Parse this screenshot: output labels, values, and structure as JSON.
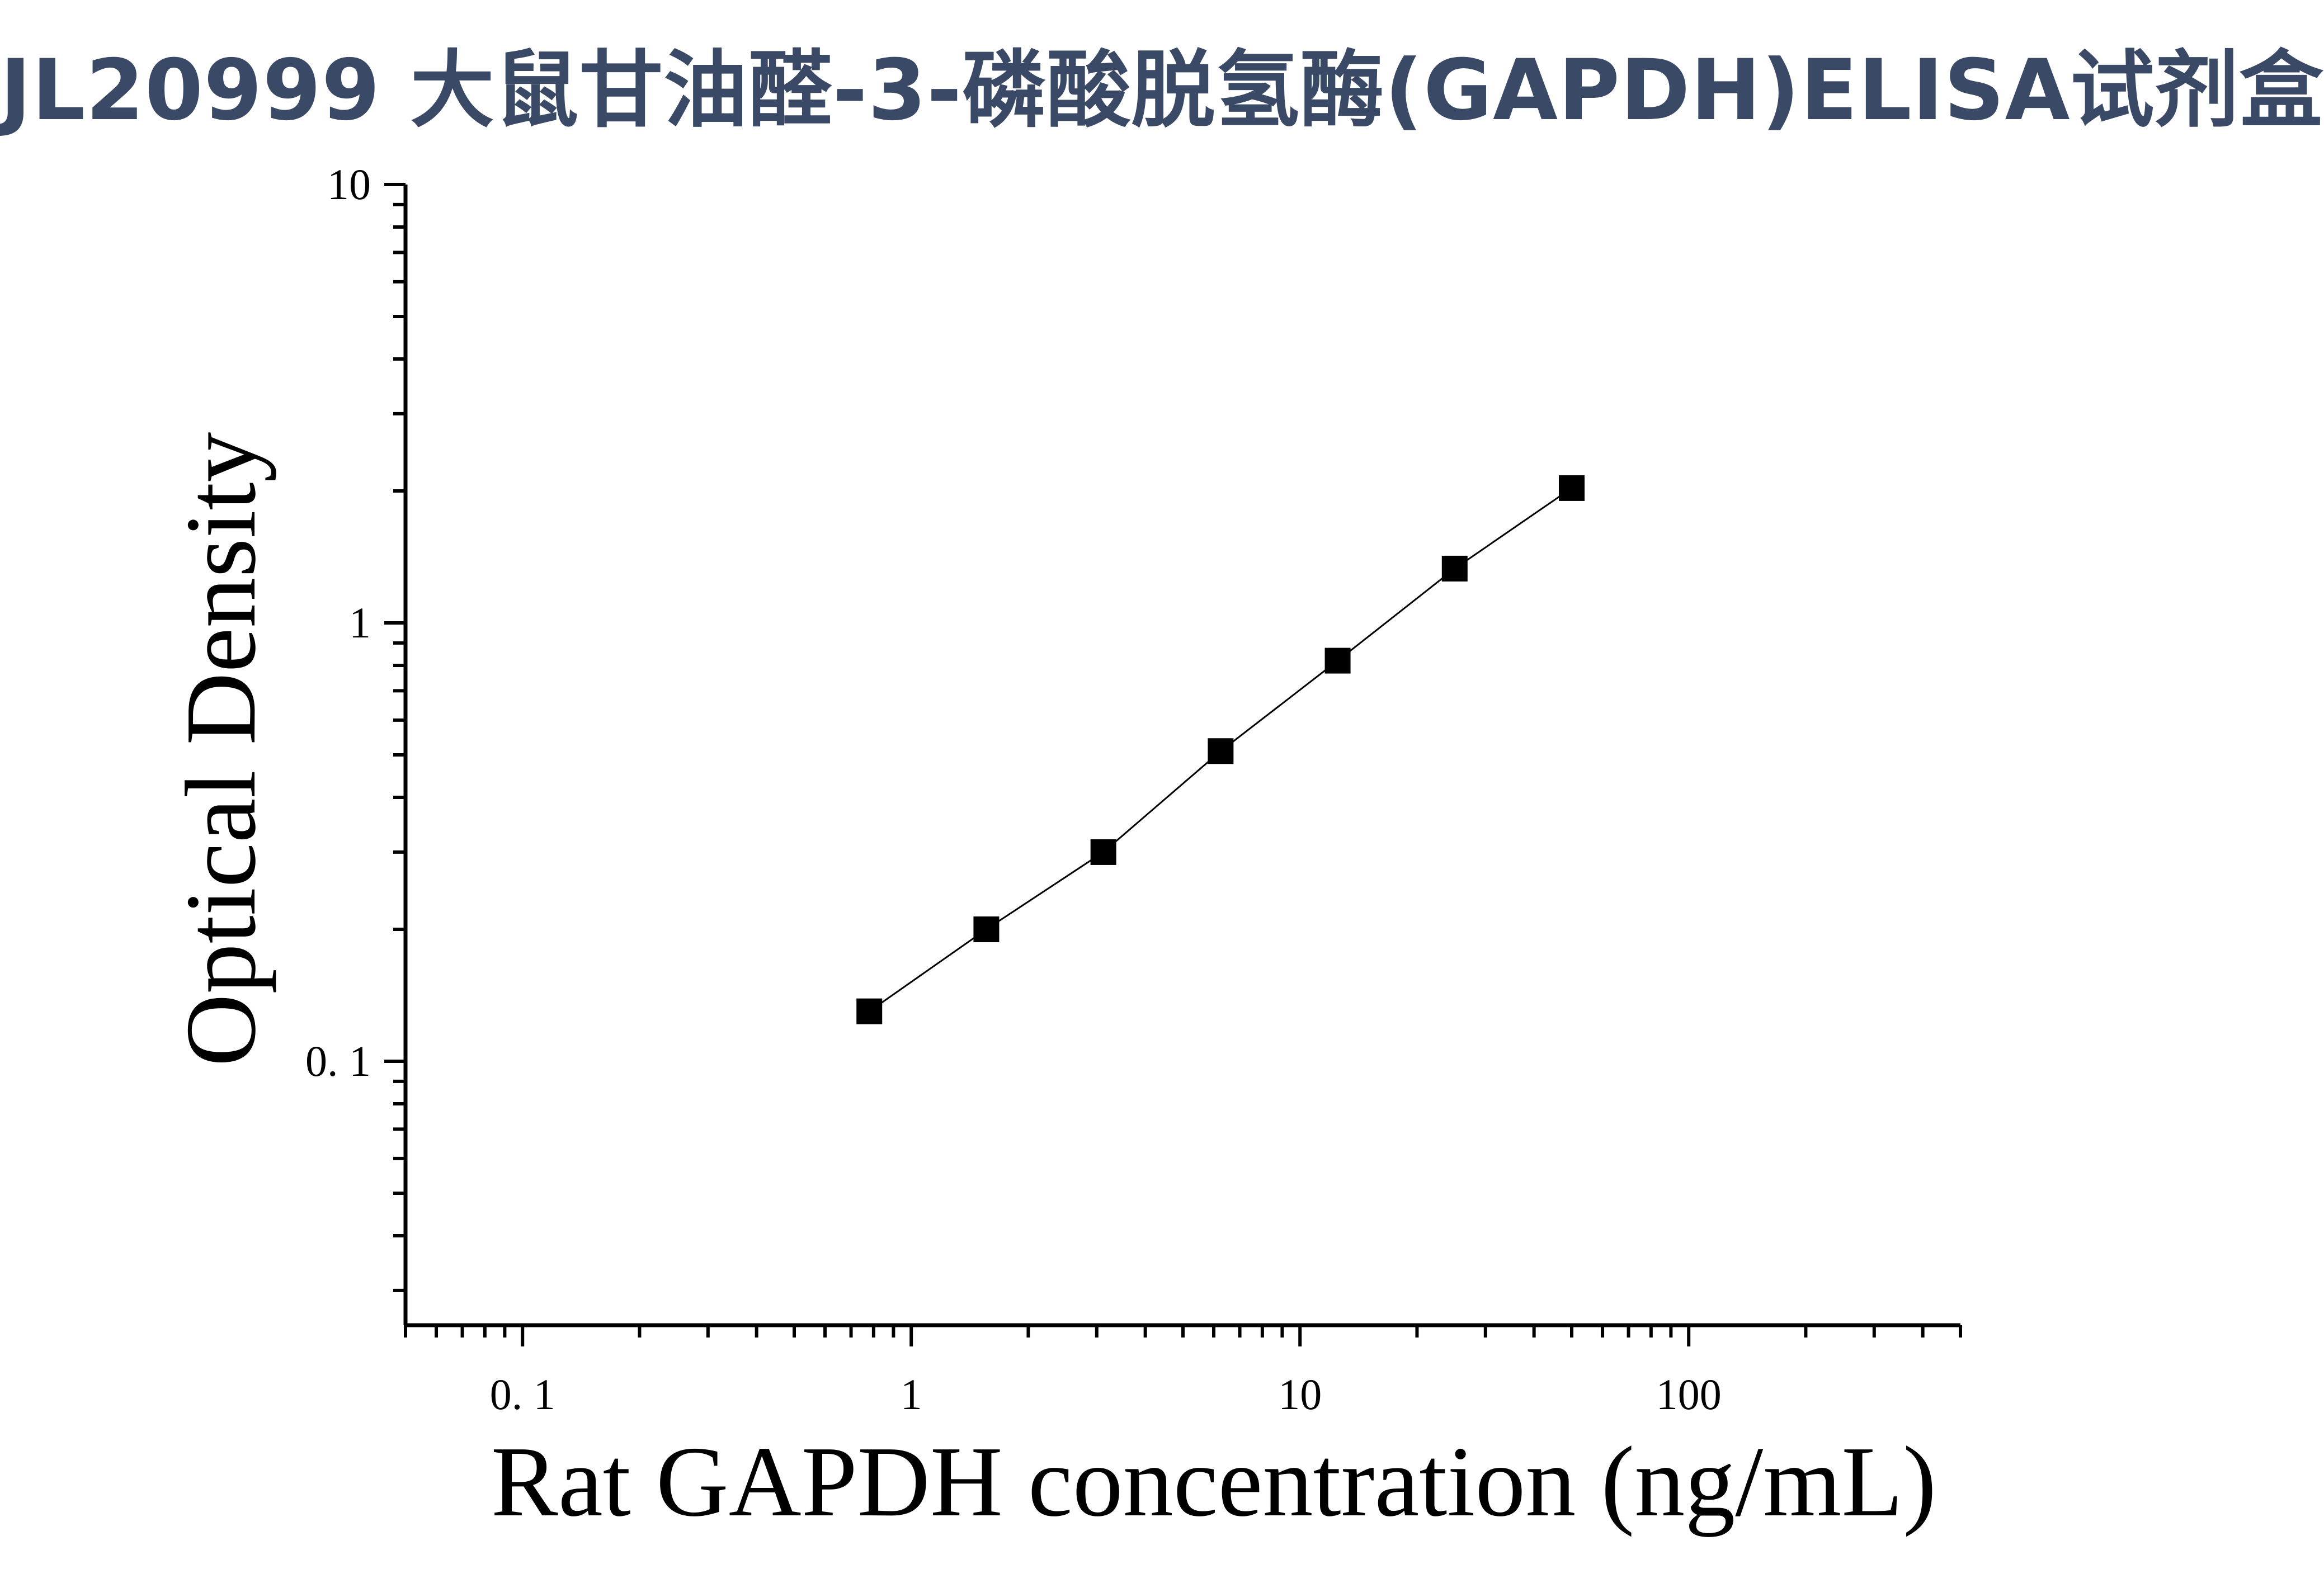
{
  "title": "JL20999 大鼠甘油醛-3-磷酸脱氢酶(GAPDH)ELISA试剂盒",
  "chart_data": {
    "type": "scatter",
    "xlabel": "Rat GAPDH concentration (ng/mL)",
    "ylabel": "Optical Density",
    "xscale": "log",
    "yscale": "log",
    "xlim": [
      0.05,
      500
    ],
    "ylim": [
      0.025,
      10
    ],
    "x_ticks": [
      0.1,
      1,
      10,
      100
    ],
    "x_tick_labels": [
      "0. 1",
      "1",
      "10",
      "100"
    ],
    "y_ticks": [
      0.1,
      1,
      10
    ],
    "y_tick_labels": [
      "0. 1",
      "1",
      "10"
    ],
    "grid": false,
    "fit_line": true,
    "marker": "square",
    "color": "#000000",
    "series": [
      {
        "x": [
          0.78,
          1.56,
          3.12,
          6.25,
          12.5,
          25,
          50
        ],
        "y": [
          0.13,
          0.2,
          0.3,
          0.51,
          0.82,
          1.33,
          2.03
        ]
      }
    ]
  }
}
